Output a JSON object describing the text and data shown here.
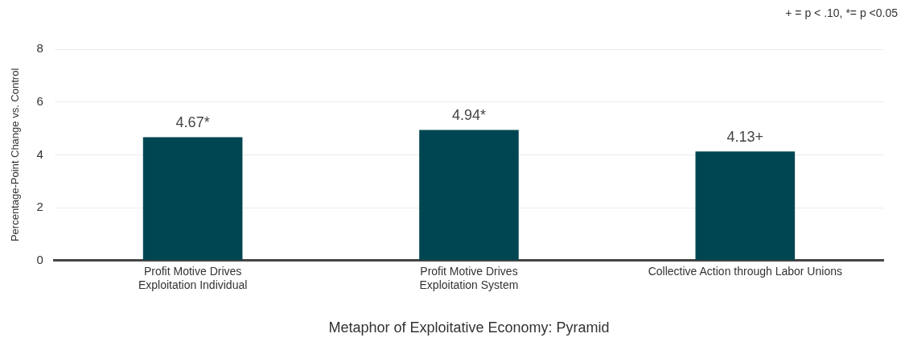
{
  "chart_data": {
    "type": "bar",
    "categories": [
      "Profit Motive Drives\nExploitation Individual",
      "Profit Motive Drives\nExploitation System",
      "Collective Action through Labor Unions"
    ],
    "values": [
      4.67,
      4.94,
      4.13
    ],
    "value_labels": [
      "4.67*",
      "4.94*",
      "4.13+"
    ],
    "color": "#004652",
    "xlabel": "Metaphor of Exploitative Economy: Pyramid",
    "ylabel": "Percentage-Point Change vs. Control",
    "ylim": [
      0,
      8
    ],
    "yticks": [
      0,
      2,
      4,
      6,
      8
    ],
    "grid": "y",
    "legend": false,
    "annotations": [
      "+ = p < .10, *= p <0.05"
    ]
  }
}
